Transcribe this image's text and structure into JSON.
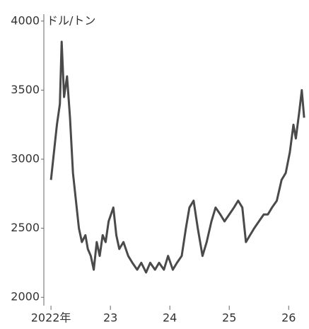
{
  "chart_data": {
    "type": "line",
    "y_label": "ドル/トン",
    "x": [
      2022.0,
      2022.05,
      2022.1,
      2022.15,
      2022.18,
      2022.22,
      2022.27,
      2022.32,
      2022.37,
      2022.42,
      2022.47,
      2022.52,
      2022.58,
      2022.62,
      2022.67,
      2022.72,
      2022.77,
      2022.82,
      2022.87,
      2022.92,
      2022.97,
      2023.05,
      2023.1,
      2023.15,
      2023.22,
      2023.3,
      2023.37,
      2023.45,
      2023.52,
      2023.6,
      2023.67,
      2023.75,
      2023.82,
      2023.9,
      2023.97,
      2024.05,
      2024.12,
      2024.2,
      2024.27,
      2024.33,
      2024.4,
      2024.47,
      2024.55,
      2024.62,
      2024.7,
      2024.77,
      2024.85,
      2024.92,
      2025.0,
      2025.08,
      2025.15,
      2025.22,
      2025.28,
      2025.35,
      2025.42,
      2025.5,
      2025.58,
      2025.65,
      2025.72,
      2025.8,
      2025.88,
      2025.95,
      2026.02,
      2026.08,
      2026.12,
      2026.18,
      2026.22,
      2026.26
    ],
    "series": [
      {
        "color": "#4a4a4a",
        "values": [
          2850,
          3050,
          3250,
          3400,
          3850,
          3450,
          3600,
          3300,
          2900,
          2700,
          2500,
          2400,
          2450,
          2350,
          2300,
          2200,
          2400,
          2300,
          2450,
          2400,
          2550,
          2650,
          2450,
          2350,
          2400,
          2300,
          2250,
          2200,
          2250,
          2180,
          2250,
          2200,
          2250,
          2200,
          2300,
          2200,
          2250,
          2300,
          2500,
          2650,
          2700,
          2500,
          2300,
          2400,
          2550,
          2650,
          2600,
          2550,
          2600,
          2650,
          2700,
          2650,
          2400,
          2450,
          2500,
          2550,
          2600,
          2600,
          2650,
          2700,
          2850,
          2900,
          3050,
          3250,
          3150,
          3350,
          3500,
          3300
        ]
      }
    ],
    "xlim": [
      2021.88,
      2026.33
    ],
    "xticks": [
      {
        "value": 2022,
        "label": "2022年"
      },
      {
        "value": 2023,
        "label": "23"
      },
      {
        "value": 2024,
        "label": "24"
      },
      {
        "value": 2025,
        "label": "25"
      },
      {
        "value": 2026,
        "label": "26"
      }
    ],
    "ylim": [
      1950,
      4050
    ],
    "yticks": [
      2000,
      2500,
      3000,
      3500,
      4000
    ]
  }
}
